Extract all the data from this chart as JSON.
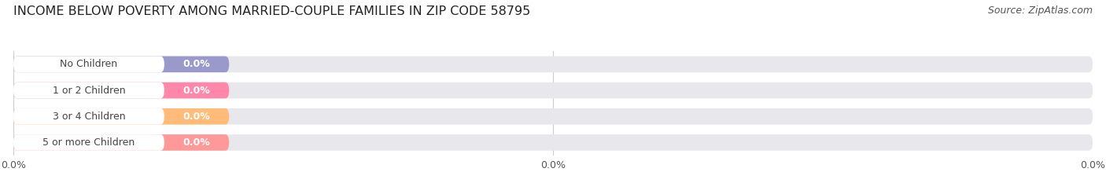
{
  "title": "INCOME BELOW POVERTY AMONG MARRIED-COUPLE FAMILIES IN ZIP CODE 58795",
  "source_text": "Source: ZipAtlas.com",
  "categories": [
    "No Children",
    "1 or 2 Children",
    "3 or 4 Children",
    "5 or more Children"
  ],
  "values": [
    0.0,
    0.0,
    0.0,
    0.0
  ],
  "bar_colors": [
    "#9999cc",
    "#ff88aa",
    "#ffbb77",
    "#ff9999"
  ],
  "bar_bg_color": "#e8e8ec",
  "white_pill_color": "#ffffff",
  "background_color": "#ffffff",
  "title_fontsize": 11.5,
  "label_fontsize": 9,
  "source_fontsize": 9,
  "tick_fontsize": 9,
  "bar_height": 0.62,
  "grid_color": "#cccccc",
  "text_color": "#555555",
  "value_color": "#ffffff",
  "label_text_color": "#444444"
}
